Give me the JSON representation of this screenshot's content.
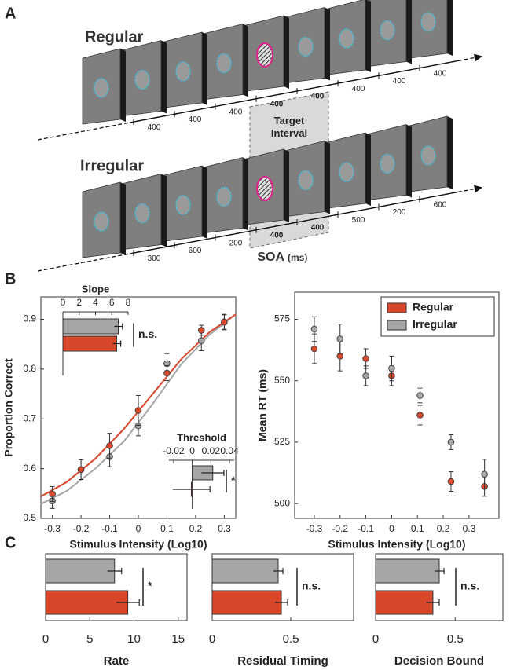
{
  "panel_labels": [
    "A",
    "B",
    "C"
  ],
  "diagram": {
    "regular": {
      "label": "Regular",
      "soa": [
        400,
        400,
        400,
        400,
        400,
        400,
        400,
        400
      ]
    },
    "irregular": {
      "label": "Irregular",
      "soa": [
        300,
        600,
        200,
        400,
        400,
        500,
        200,
        600
      ]
    },
    "target_interval": "Target Interval",
    "soa_label": "SOA",
    "soa_unit": "(ms)"
  },
  "chart_data": [
    {
      "type": "line",
      "xlabel": "Stimulus Intensity (Log10)",
      "ylabel": "Proportion Correct",
      "xlim": [
        -0.34,
        0.34
      ],
      "xticks": [
        -0.3,
        -0.2,
        -0.1,
        0,
        0.1,
        0.2,
        0.3
      ],
      "ylim": [
        0.5,
        0.945
      ],
      "yticks": [
        0.5,
        0.6,
        0.7,
        0.8,
        0.9
      ],
      "series": [
        {
          "color": "#a6a6a6",
          "x": [
            -0.3,
            -0.2,
            -0.1,
            0,
            0.1,
            0.22,
            0.3
          ],
          "values": [
            0.535,
            0.598,
            0.624,
            0.686,
            0.811,
            0.857,
            0.895
          ],
          "errors": [
            0.015,
            0.02,
            0.02,
            0.02,
            0.02,
            0.02,
            0.015
          ],
          "fit_x": [
            -0.34,
            -0.25,
            -0.15,
            -0.05,
            0.05,
            0.15,
            0.25,
            0.34
          ],
          "fit_values": [
            0.529,
            0.555,
            0.6,
            0.655,
            0.73,
            0.81,
            0.87,
            0.91
          ]
        },
        {
          "color": "#d9472b",
          "x": [
            -0.3,
            -0.2,
            -0.1,
            0,
            0.1,
            0.22,
            0.3
          ],
          "values": [
            0.549,
            0.598,
            0.646,
            0.717,
            0.792,
            0.878,
            0.894
          ],
          "errors": [
            0.015,
            0.02,
            0.025,
            0.03,
            0.015,
            0.01,
            0.015
          ],
          "fit_x": [
            -0.34,
            -0.25,
            -0.15,
            -0.05,
            0.05,
            0.15,
            0.25,
            0.34
          ],
          "fit_values": [
            0.544,
            0.573,
            0.62,
            0.68,
            0.75,
            0.82,
            0.875,
            0.91
          ]
        }
      ],
      "insets": [
        {
          "type": "bar",
          "title": "Slope",
          "xlim": [
            0,
            8
          ],
          "xticks": [
            0,
            2,
            4,
            6,
            8
          ],
          "values": [
            6.8,
            6.6
          ],
          "errors": [
            0.5,
            0.5
          ],
          "colors": [
            "#a6a6a6",
            "#d9472b"
          ],
          "annotation": "n.s."
        },
        {
          "type": "bar",
          "title": "Threshold",
          "xlim": [
            -0.025,
            0.045
          ],
          "xticks": [
            -0.02,
            0,
            0.02,
            0.04
          ],
          "values": [
            0.022,
            -0.001
          ],
          "errors": [
            0.012,
            0.02
          ],
          "colors": [
            "#a6a6a6",
            "#d9472b"
          ],
          "annotation": "*"
        }
      ]
    },
    {
      "type": "scatter",
      "xlabel": "Stimulus Intensity (Log10)",
      "ylabel": "Mean RT (ms)",
      "xlim": [
        -0.376,
        0.416
      ],
      "xticks": [
        -0.3,
        -0.2,
        -0.1,
        0,
        0.1,
        0.2,
        0.3
      ],
      "ylim": [
        494,
        586
      ],
      "yticks": [
        500,
        525,
        550,
        575
      ],
      "legend": "upper right",
      "series": [
        {
          "name": "Regular",
          "color": "#d9472b",
          "x": [
            -0.3,
            -0.2,
            -0.1,
            0,
            0.11,
            0.23,
            0.36
          ],
          "values": [
            563,
            560,
            559,
            552,
            536,
            509,
            507
          ],
          "errors": [
            6,
            6,
            4,
            4,
            4,
            4,
            4
          ]
        },
        {
          "name": "Irregular",
          "color": "#a6a6a6",
          "x": [
            -0.3,
            -0.2,
            -0.1,
            0,
            0.11,
            0.23,
            0.36
          ],
          "values": [
            571,
            567,
            552,
            555,
            544,
            525,
            512
          ],
          "errors": [
            5,
            6,
            4,
            5,
            3,
            3,
            6
          ]
        }
      ]
    },
    {
      "type": "bar",
      "xlabel": "Rate",
      "xlim": [
        0,
        16
      ],
      "xticks": [
        0,
        5,
        10,
        15
      ],
      "values": [
        7.8,
        9.3
      ],
      "errors": [
        0.8,
        1.3
      ],
      "colors": [
        "#a6a6a6",
        "#d9472b"
      ],
      "annotation": "*"
    },
    {
      "type": "bar",
      "xlabel": "Residual Timing",
      "xlim": [
        0,
        0.9
      ],
      "xticks": [
        0,
        0.5
      ],
      "values": [
        0.42,
        0.44
      ],
      "errors": [
        0.03,
        0.04
      ],
      "colors": [
        "#a6a6a6",
        "#d9472b"
      ],
      "annotation": "n.s."
    },
    {
      "type": "bar",
      "xlabel": "Decision Bound",
      "xlim": [
        0,
        0.8
      ],
      "xticks": [
        0,
        0.5
      ],
      "values": [
        0.4,
        0.36
      ],
      "errors": [
        0.03,
        0.04
      ],
      "colors": [
        "#a6a6a6",
        "#d9472b"
      ],
      "annotation": "n.s."
    }
  ]
}
